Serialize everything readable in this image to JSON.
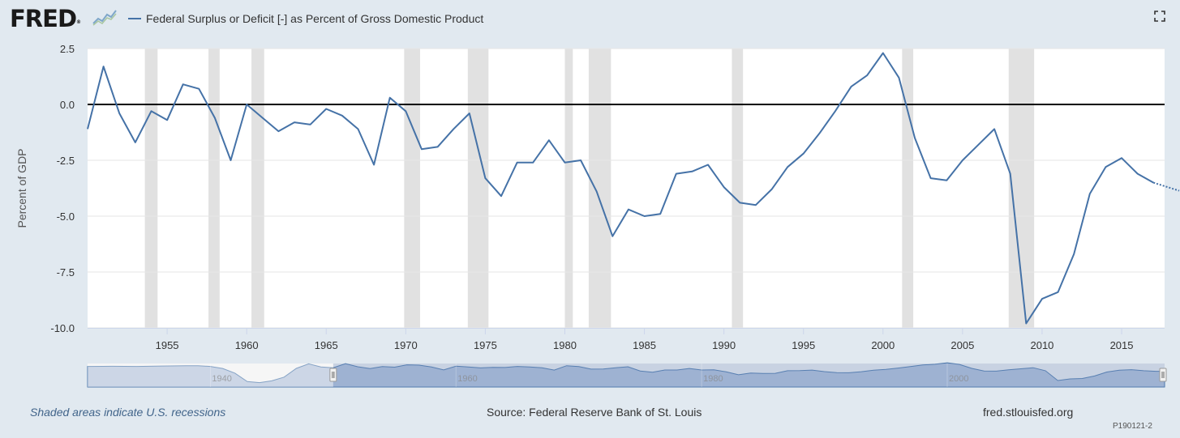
{
  "header": {
    "logo_text": "FRED",
    "logo_mark": "®",
    "logo_icon": "sparkline-icon",
    "fullscreen_icon": "fullscreen-icon"
  },
  "footer": {
    "recession_note": "Shaded areas indicate U.S. recessions",
    "source": "Source: Federal Reserve Bank of St. Louis",
    "site": "fred.stlouisfed.org",
    "code": "P190121-2"
  },
  "colors": {
    "series": "#4572a7",
    "recession": "#e1e1e1",
    "background": "#e1e9f0",
    "navigator_fill": "#7b97c5"
  },
  "chart_data": {
    "type": "line",
    "title": "",
    "xlabel": "",
    "ylabel": "Percent of GDP",
    "ylim": [
      -10,
      2.5
    ],
    "xlim": [
      1950,
      2017
    ],
    "yticks": [
      "2.5",
      "0.0",
      "-2.5",
      "-5.0",
      "-7.5",
      "-10.0"
    ],
    "xticks": [
      "1955",
      "1960",
      "1965",
      "1970",
      "1975",
      "1980",
      "1985",
      "1990",
      "1995",
      "2000",
      "2005",
      "2010",
      "2015"
    ],
    "grid": true,
    "legend": "top-left",
    "series": [
      {
        "name": "Federal Surplus or Deficit [-] as Percent of Gross Domestic Product",
        "x": [
          1950,
          1951,
          1952,
          1953,
          1954,
          1955,
          1956,
          1957,
          1958,
          1959,
          1960,
          1961,
          1962,
          1963,
          1964,
          1965,
          1966,
          1967,
          1968,
          1969,
          1970,
          1971,
          1972,
          1973,
          1974,
          1975,
          1976,
          1977,
          1978,
          1979,
          1980,
          1981,
          1982,
          1983,
          1984,
          1985,
          1986,
          1987,
          1988,
          1989,
          1990,
          1991,
          1992,
          1993,
          1994,
          1995,
          1996,
          1997,
          1998,
          1999,
          2000,
          2001,
          2002,
          2003,
          2004,
          2005,
          2006,
          2007,
          2008,
          2009,
          2010,
          2011,
          2012,
          2013,
          2014,
          2015,
          2016,
          2017
        ],
        "values": [
          -1.1,
          1.7,
          -0.4,
          -1.7,
          -0.3,
          -0.7,
          0.9,
          0.7,
          -0.6,
          -2.5,
          0.0,
          -0.6,
          -1.2,
          -0.8,
          -0.9,
          -0.2,
          -0.5,
          -1.1,
          -2.7,
          0.3,
          -0.3,
          -2.0,
          -1.9,
          -1.1,
          -0.4,
          -3.3,
          -4.1,
          -2.6,
          -2.6,
          -1.6,
          -2.6,
          -2.5,
          -3.9,
          -5.9,
          -4.7,
          -5.0,
          -4.9,
          -3.1,
          -3.0,
          -2.7,
          -3.7,
          -4.4,
          -4.5,
          -3.8,
          -2.8,
          -2.2,
          -1.3,
          -0.3,
          0.8,
          1.3,
          2.3,
          1.2,
          -1.5,
          -3.3,
          -3.4,
          -2.5,
          -1.8,
          -1.1,
          -3.1,
          -9.8,
          -8.7,
          -8.4,
          -6.7,
          -4.0,
          -2.8,
          -2.4,
          -3.1,
          -3.5
        ]
      }
    ],
    "recessions": [
      [
        1953.6,
        1954.4
      ],
      [
        1957.6,
        1958.3
      ],
      [
        1960.3,
        1961.1
      ],
      [
        1969.9,
        1970.9
      ],
      [
        1973.9,
        1975.2
      ],
      [
        1980.0,
        1980.5
      ],
      [
        1981.5,
        1982.9
      ],
      [
        1990.5,
        1991.2
      ],
      [
        2001.2,
        2001.9
      ],
      [
        2007.9,
        2009.5
      ]
    ],
    "navigator": {
      "ticks": [
        "1940",
        "1960",
        "1980",
        "2000"
      ]
    }
  }
}
